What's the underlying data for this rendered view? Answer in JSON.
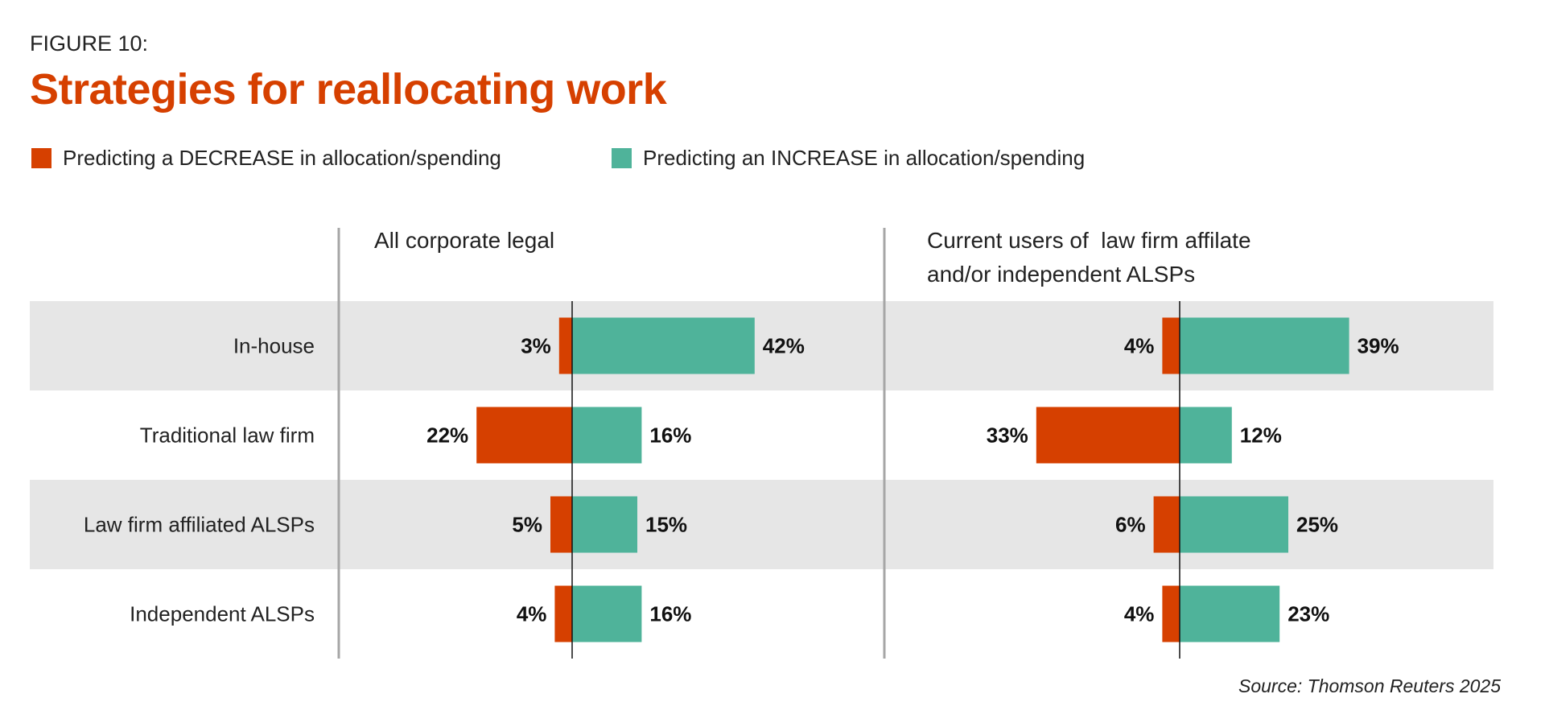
{
  "figure_label": "FIGURE 10:",
  "chart_data": {
    "type": "bar",
    "title": "Strategies for reallocating work",
    "legend": [
      {
        "name": "Predicting a DECREASE in allocation/spending",
        "color": "#D64000"
      },
      {
        "name": "Predicting an INCREASE in allocation/spending",
        "color": "#4FB39A"
      }
    ],
    "legend_position": "top-left",
    "categories": [
      "In-house",
      "Traditional law firm",
      "Law firm affiliated ALSPs",
      "Independent ALSPs"
    ],
    "panels": [
      {
        "title_lines": [
          "All corporate legal"
        ],
        "series": [
          {
            "name": "Decrease",
            "values": [
              3,
              22,
              5,
              4
            ],
            "labels": [
              "3%",
              "22%",
              "5%",
              "4%"
            ]
          },
          {
            "name": "Increase",
            "values": [
              42,
              16,
              15,
              16
            ],
            "labels": [
              "42%",
              "16%",
              "15%",
              "16%"
            ]
          }
        ]
      },
      {
        "title_lines": [
          "Current users of  law firm affilate",
          "and/or independent ALSPs"
        ],
        "series": [
          {
            "name": "Decrease",
            "values": [
              4,
              33,
              6,
              4
            ],
            "labels": [
              "4%",
              "33%",
              "6%",
              "4%"
            ]
          },
          {
            "name": "Increase",
            "values": [
              39,
              12,
              25,
              23
            ],
            "labels": [
              "39%",
              "12%",
              "25%",
              "23%"
            ]
          }
        ]
      }
    ],
    "unit": "%"
  },
  "source": "Source: Thomson Reuters 2025"
}
